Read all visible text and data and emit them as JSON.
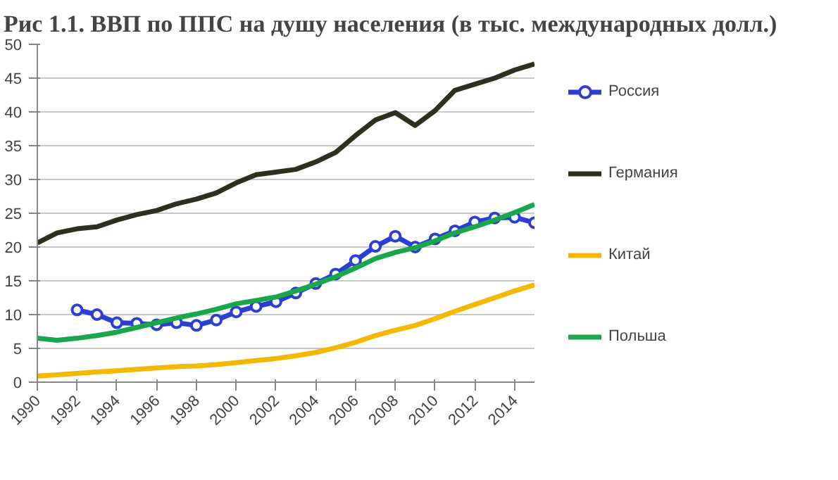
{
  "chart_data": {
    "type": "line",
    "title": "Рис 1.1. ВВП по ППС на душу населения (в тыс. международных долл.)",
    "x": [
      1990,
      1991,
      1992,
      1993,
      1994,
      1995,
      1996,
      1997,
      1998,
      1999,
      2000,
      2001,
      2002,
      2003,
      2004,
      2005,
      2006,
      2007,
      2008,
      2009,
      2010,
      2011,
      2012,
      2013,
      2014,
      2015
    ],
    "series": [
      {
        "name": "Россия",
        "color": "#2b3fd6",
        "marker": "circle",
        "values": [
          null,
          null,
          10.7,
          10.0,
          8.8,
          8.7,
          8.5,
          8.8,
          8.4,
          9.2,
          10.4,
          11.2,
          11.9,
          13.2,
          14.6,
          16.0,
          18.0,
          20.1,
          21.6,
          20.0,
          21.2,
          22.4,
          23.7,
          24.3,
          24.4,
          23.6
        ]
      },
      {
        "name": "Германия",
        "color": "#2f2f1f",
        "values": [
          20.6,
          22.1,
          22.7,
          23.0,
          24.0,
          24.8,
          25.4,
          26.4,
          27.1,
          28.0,
          29.5,
          30.7,
          31.1,
          31.5,
          32.6,
          34.0,
          36.5,
          38.8,
          39.9,
          38.0,
          40.2,
          43.2,
          44.1,
          45.0,
          46.2,
          47.1
        ]
      },
      {
        "name": "Китай",
        "color": "#f5b800",
        "values": [
          0.9,
          1.1,
          1.3,
          1.5,
          1.7,
          1.9,
          2.1,
          2.3,
          2.4,
          2.6,
          2.9,
          3.2,
          3.5,
          3.9,
          4.4,
          5.1,
          5.9,
          6.9,
          7.7,
          8.4,
          9.4,
          10.5,
          11.5,
          12.5,
          13.5,
          14.4
        ]
      },
      {
        "name": "Польша",
        "color": "#1aa64a",
        "values": [
          6.5,
          6.2,
          6.5,
          6.9,
          7.4,
          8.1,
          8.8,
          9.5,
          10.1,
          10.8,
          11.6,
          12.1,
          12.6,
          13.5,
          14.5,
          15.6,
          16.9,
          18.3,
          19.2,
          19.9,
          20.9,
          22.1,
          23.0,
          24.0,
          25.1,
          26.3
        ]
      }
    ],
    "xlim": [
      1990,
      2015
    ],
    "xticks": [
      1990,
      1992,
      1994,
      1996,
      1998,
      2000,
      2002,
      2004,
      2006,
      2008,
      2010,
      2012,
      2014
    ],
    "ylim": [
      0,
      50
    ],
    "yticks": [
      0,
      5,
      10,
      15,
      20,
      25,
      30,
      35,
      40,
      45,
      50
    ],
    "grid": "y",
    "legend": "right",
    "marker": "none",
    "line_style": "solid"
  }
}
